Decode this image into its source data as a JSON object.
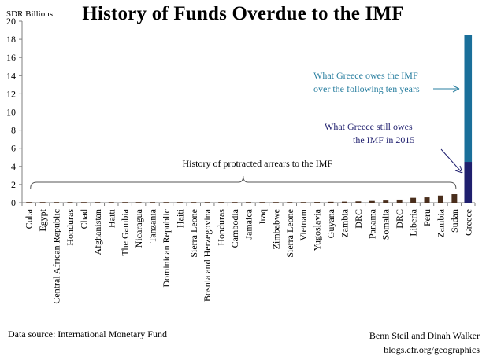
{
  "chart_data": {
    "type": "bar",
    "title": "History of Funds Overdue to the IMF",
    "ylabel": "SDR Billions",
    "ylim": [
      0,
      20
    ],
    "yticks": [
      0,
      2,
      4,
      6,
      8,
      10,
      12,
      14,
      16,
      18,
      20
    ],
    "grid": false,
    "categories": [
      "Cuba",
      "Egypt",
      "Central African Republic",
      "Honduras",
      "Chad",
      "Afghanistan",
      "Haiti",
      "The Gambia",
      "Nicaragua",
      "Tanzania",
      "Dominican Republic",
      "Haiti",
      "Sierra Leone",
      "Bosnia and Herzegovina",
      "Honduras",
      "Cambodia",
      "Jamaica",
      "Iraq",
      "Zimbabwe",
      "Sierra Leone",
      "Vietnam",
      "Yugoslavia",
      "Guyana",
      "Zambia",
      "DRC",
      "Panama",
      "Somalia",
      "DRC",
      "Liberia",
      "Peru",
      "Zambia",
      "Sudan",
      "Greece"
    ],
    "values": [
      0.02,
      0.02,
      0.03,
      0.03,
      0.03,
      0.03,
      0.03,
      0.03,
      0.03,
      0.03,
      0.03,
      0.03,
      0.03,
      0.04,
      0.04,
      0.04,
      0.05,
      0.05,
      0.05,
      0.06,
      0.07,
      0.08,
      0.1,
      0.12,
      0.15,
      0.2,
      0.25,
      0.35,
      0.55,
      0.6,
      0.8,
      0.95,
      4.5
    ],
    "stacked_top": {
      "category": "Greece",
      "base": 4.5,
      "top": 18.5
    },
    "colors": {
      "historic": "#4a2e1c",
      "greece_2015": "#1f1f6e",
      "greece_future": "#1a6f9a",
      "annotation_teal": "#2a7fa0",
      "annotation_navy": "#1f1f6e",
      "brace": "#555555"
    },
    "annotations": {
      "future": [
        "What Greece owes the IMF",
        "over the following  ten years"
      ],
      "current": [
        "What Greece still owes",
        "the IMF in 2015"
      ],
      "brace": "History  of protracted arrears to the IMF"
    }
  },
  "footer": {
    "source": "Data source: International Monetary  Fund",
    "author": "Benn Steil and Dinah Walker",
    "site": "blogs.cfr.org/geographics"
  }
}
